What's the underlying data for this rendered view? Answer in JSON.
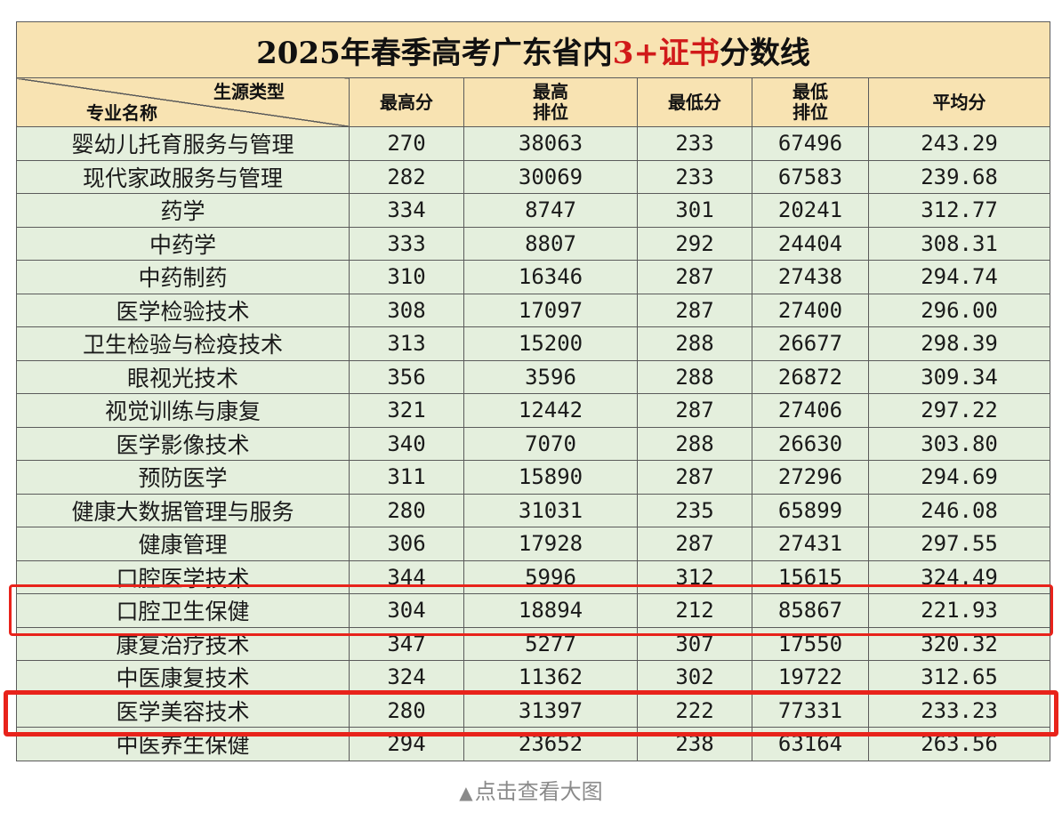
{
  "table": {
    "title_prefix": "2025年春季高考广东省内",
    "title_accent": "3+证书",
    "title_suffix": "分数线",
    "corner_top": "生源类型",
    "corner_bottom": "专业名称",
    "headers": [
      "最高分",
      "最高\n排位",
      "最低分",
      "最低\n排位",
      "平均分"
    ],
    "accent_color": "#d11a1a",
    "header_bg": "#f8e3b2",
    "body_bg": "#e4efdd",
    "rows": [
      {
        "name": "婴幼儿托育服务与管理",
        "max": "270",
        "max_rank": "38063",
        "min": "233",
        "min_rank": "67496",
        "avg": "243.29"
      },
      {
        "name": "现代家政服务与管理",
        "max": "282",
        "max_rank": "30069",
        "min": "233",
        "min_rank": "67583",
        "avg": "239.68"
      },
      {
        "name": "药学",
        "max": "334",
        "max_rank": "8747",
        "min": "301",
        "min_rank": "20241",
        "avg": "312.77"
      },
      {
        "name": "中药学",
        "max": "333",
        "max_rank": "8807",
        "min": "292",
        "min_rank": "24404",
        "avg": "308.31"
      },
      {
        "name": "中药制药",
        "max": "310",
        "max_rank": "16346",
        "min": "287",
        "min_rank": "27438",
        "avg": "294.74"
      },
      {
        "name": "医学检验技术",
        "max": "308",
        "max_rank": "17097",
        "min": "287",
        "min_rank": "27400",
        "avg": "296.00"
      },
      {
        "name": "卫生检验与检疫技术",
        "max": "313",
        "max_rank": "15200",
        "min": "288",
        "min_rank": "26677",
        "avg": "298.39"
      },
      {
        "name": "眼视光技术",
        "max": "356",
        "max_rank": "3596",
        "min": "288",
        "min_rank": "26872",
        "avg": "309.34"
      },
      {
        "name": "视觉训练与康复",
        "max": "321",
        "max_rank": "12442",
        "min": "287",
        "min_rank": "27406",
        "avg": "297.22"
      },
      {
        "name": "医学影像技术",
        "max": "340",
        "max_rank": "7070",
        "min": "288",
        "min_rank": "26630",
        "avg": "303.80"
      },
      {
        "name": "预防医学",
        "max": "311",
        "max_rank": "15890",
        "min": "287",
        "min_rank": "27296",
        "avg": "294.69"
      },
      {
        "name": "健康大数据管理与服务",
        "max": "280",
        "max_rank": "31031",
        "min": "235",
        "min_rank": "65899",
        "avg": "246.08"
      },
      {
        "name": "健康管理",
        "max": "306",
        "max_rank": "17928",
        "min": "287",
        "min_rank": "27431",
        "avg": "297.55"
      },
      {
        "name": "口腔医学技术",
        "max": "344",
        "max_rank": "5996",
        "min": "312",
        "min_rank": "15615",
        "avg": "324.49"
      },
      {
        "name": "口腔卫生保健",
        "max": "304",
        "max_rank": "18894",
        "min": "212",
        "min_rank": "85867",
        "avg": "221.93"
      },
      {
        "name": "康复治疗技术",
        "max": "347",
        "max_rank": "5277",
        "min": "307",
        "min_rank": "17550",
        "avg": "320.32"
      },
      {
        "name": "中医康复技术",
        "max": "324",
        "max_rank": "11362",
        "min": "302",
        "min_rank": "19722",
        "avg": "312.65"
      },
      {
        "name": "医学美容技术",
        "max": "280",
        "max_rank": "31397",
        "min": "222",
        "min_rank": "77331",
        "avg": "233.23"
      },
      {
        "name": "中医养生保健",
        "max": "294",
        "max_rank": "23652",
        "min": "238",
        "min_rank": "63164",
        "avg": "263.56"
      }
    ]
  },
  "caption": {
    "icon": "triangle-up-icon",
    "text": "点击查看大图"
  },
  "highlight_color": "#e8231b"
}
